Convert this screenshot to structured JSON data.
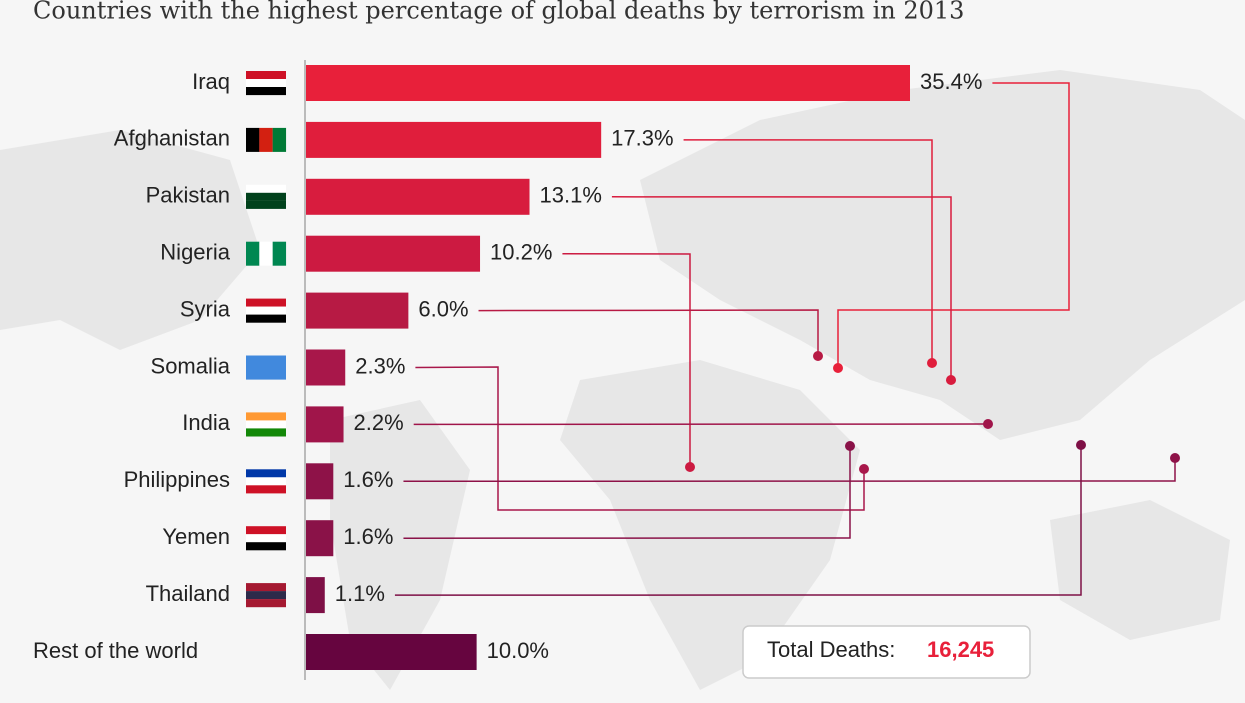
{
  "chart_data": {
    "type": "bar",
    "orientation": "horizontal",
    "title": "Countries with the highest percentage of global deaths by terrorism in 2013",
    "categories": [
      "Iraq",
      "Afghanistan",
      "Pakistan",
      "Nigeria",
      "Syria",
      "Somalia",
      "India",
      "Philippines",
      "Yemen",
      "Thailand",
      "Rest of the world"
    ],
    "values": [
      35.4,
      17.3,
      13.1,
      10.2,
      6.0,
      2.3,
      2.2,
      1.6,
      1.6,
      1.1,
      10.0
    ],
    "value_labels": [
      "35.4%",
      "17.3%",
      "13.1%",
      "10.2%",
      "6.0%",
      "2.3%",
      "2.2%",
      "1.6%",
      "1.6%",
      "1.1%",
      "10.0%"
    ],
    "colors": [
      "#e8203a",
      "#e01e3c",
      "#d81c3e",
      "#cc1a41",
      "#b71a44",
      "#a8174a",
      "#a0154a",
      "#8e1248",
      "#8a1248",
      "#7e1046",
      "#66053f"
    ],
    "total_text": "Total Deaths:",
    "total": {
      "value": 16245,
      "label": "16,245"
    }
  }
}
